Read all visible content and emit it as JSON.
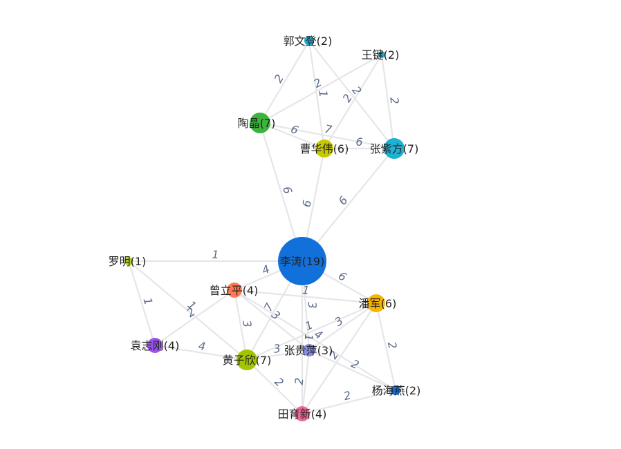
{
  "graph": {
    "nodes": [
      {
        "id": "lt",
        "label": "李涛(19)",
        "value": 19,
        "color": "#1270db"
      },
      {
        "id": "gwd",
        "label": "郭文登(2)",
        "value": 2,
        "color": "#1fb1d1"
      },
      {
        "id": "wj",
        "label": "王键(2)",
        "value": 2,
        "color": "#1fb1d1"
      },
      {
        "id": "tj",
        "label": "陶晶(7)",
        "value": 7,
        "color": "#3bb43b"
      },
      {
        "id": "chw",
        "label": "曹华伟(6)",
        "value": 6,
        "color": "#c8c800"
      },
      {
        "id": "zzf",
        "label": "张紫方(7)",
        "value": 7,
        "color": "#1fb1d1"
      },
      {
        "id": "lm",
        "label": "罗明(1)",
        "value": 1,
        "color": "#b8cc1a"
      },
      {
        "id": "zlp",
        "label": "曾立平(4)",
        "value": 4,
        "color": "#ff7a52"
      },
      {
        "id": "pj",
        "label": "潘军(6)",
        "value": 6,
        "color": "#f7b500"
      },
      {
        "id": "yzg",
        "label": "袁志刚(4)",
        "value": 4,
        "color": "#9c54f0"
      },
      {
        "id": "hzx",
        "label": "黄子欣(7)",
        "value": 7,
        "color": "#a3c400"
      },
      {
        "id": "zgp",
        "label": "张贵萍(3)",
        "value": 3,
        "color": "#8a8ae8"
      },
      {
        "id": "yhy",
        "label": "杨海燕(2)",
        "value": 2,
        "color": "#1270db"
      },
      {
        "id": "tyx",
        "label": "田育新(4)",
        "value": 4,
        "color": "#ee6699"
      }
    ],
    "edges": [
      {
        "source": "gwd",
        "target": "tj",
        "label": "2"
      },
      {
        "source": "gwd",
        "target": "chw",
        "label": "1"
      },
      {
        "source": "gwd",
        "target": "zzf",
        "label": "2"
      },
      {
        "source": "wj",
        "target": "tj",
        "label": "2"
      },
      {
        "source": "wj",
        "target": "chw",
        "label": "2"
      },
      {
        "source": "wj",
        "target": "zzf",
        "label": "2"
      },
      {
        "source": "tj",
        "target": "chw",
        "label": "6"
      },
      {
        "source": "tj",
        "target": "zzf",
        "label": "7"
      },
      {
        "source": "chw",
        "target": "zzf",
        "label": "6"
      },
      {
        "source": "tj",
        "target": "lt",
        "label": "6"
      },
      {
        "source": "chw",
        "target": "lt",
        "label": "6"
      },
      {
        "source": "zzf",
        "target": "lt",
        "label": "6"
      },
      {
        "source": "lm",
        "target": "lt",
        "label": "1"
      },
      {
        "source": "lm",
        "target": "yzg",
        "label": "1"
      },
      {
        "source": "lm",
        "target": "hzx",
        "label": "1"
      },
      {
        "source": "lt",
        "target": "zlp",
        "label": "4"
      },
      {
        "source": "lt",
        "target": "pj",
        "label": "6"
      },
      {
        "source": "lt",
        "target": "hzx",
        "label": "7"
      },
      {
        "source": "lt",
        "target": "zgp",
        "label": "3"
      },
      {
        "source": "lt",
        "target": "tyx",
        "label": "1"
      },
      {
        "source": "zlp",
        "target": "pj",
        "label": "1"
      },
      {
        "source": "zlp",
        "target": "yzg",
        "label": "2"
      },
      {
        "source": "zlp",
        "target": "hzx",
        "label": "3"
      },
      {
        "source": "zlp",
        "target": "zgp",
        "label": "3"
      },
      {
        "source": "zlp",
        "target": "yhy",
        "label": "4"
      },
      {
        "source": "pj",
        "target": "hzx",
        "label": "1"
      },
      {
        "source": "pj",
        "target": "zgp",
        "label": "3"
      },
      {
        "source": "pj",
        "target": "yhy",
        "label": "2"
      },
      {
        "source": "pj",
        "target": "tyx",
        "label": "2"
      },
      {
        "source": "yzg",
        "target": "hzx",
        "label": "4"
      },
      {
        "source": "hzx",
        "target": "zgp",
        "label": "3"
      },
      {
        "source": "hzx",
        "target": "tyx",
        "label": "2"
      },
      {
        "source": "zgp",
        "target": "tyx",
        "label": "2"
      },
      {
        "source": "zgp",
        "target": "yhy",
        "label": "2"
      },
      {
        "source": "tyx",
        "target": "yhy",
        "label": "2"
      }
    ]
  }
}
